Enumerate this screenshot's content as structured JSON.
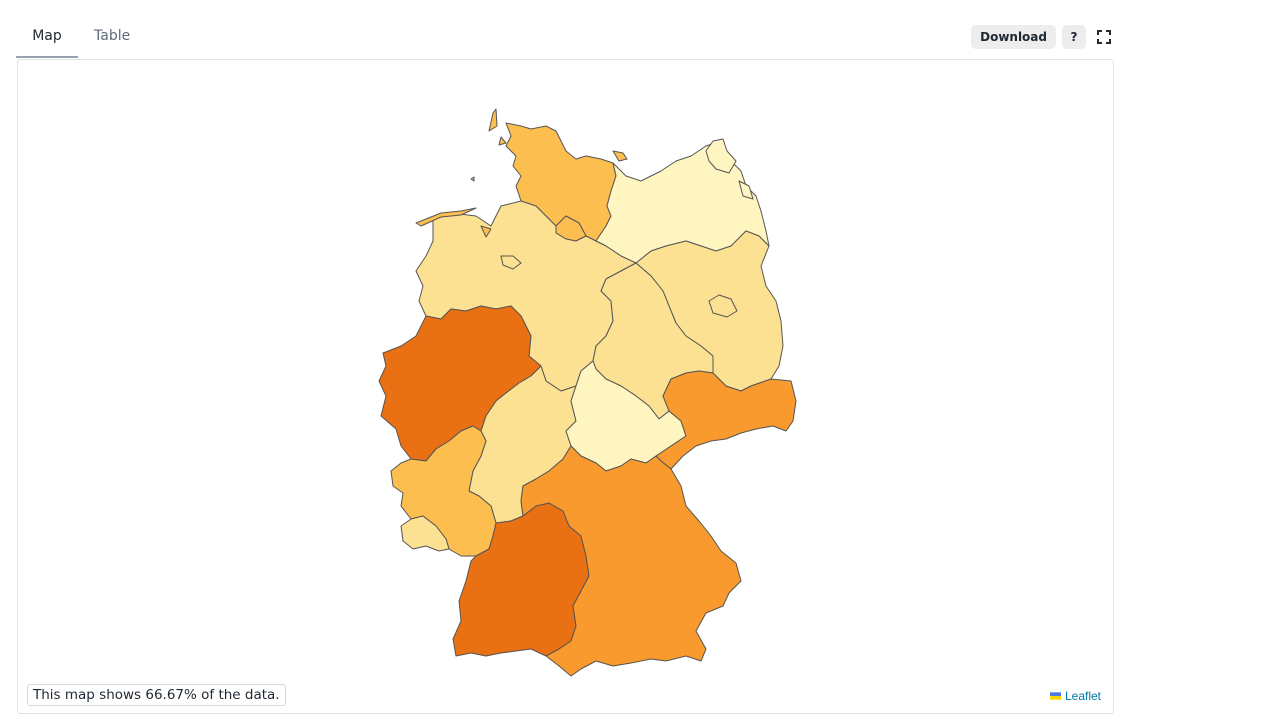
{
  "tabs": [
    {
      "label": "Map",
      "active": true
    },
    {
      "label": "Table",
      "active": false
    }
  ],
  "toolbar": {
    "download_label": "Download",
    "help_label": "?",
    "fullscreen_icon": "fullscreen-icon"
  },
  "map": {
    "coverage_text": "This map shows 66.67% of the data.",
    "attribution": "Leaflet",
    "color_scale": [
      "#fff5c0",
      "#fde192",
      "#fdbe50",
      "#f89a2e",
      "#ea7014"
    ],
    "regions": [
      {
        "name": "Schleswig-Holstein",
        "color": "#fdbe50"
      },
      {
        "name": "Hamburg",
        "color": "#fdbe50"
      },
      {
        "name": "Mecklenburg-Vorpommern",
        "color": "#fff5c0"
      },
      {
        "name": "Niedersachsen",
        "color": "#fde192"
      },
      {
        "name": "Bremen",
        "color": "#fde192"
      },
      {
        "name": "Brandenburg",
        "color": "#fde192"
      },
      {
        "name": "Berlin",
        "color": "#fde192"
      },
      {
        "name": "Sachsen-Anhalt",
        "color": "#fde192"
      },
      {
        "name": "Nordrhein-Westfalen",
        "color": "#ea7014"
      },
      {
        "name": "Hessen",
        "color": "#fde192"
      },
      {
        "name": "Thüringen",
        "color": "#fff5c0"
      },
      {
        "name": "Sachsen",
        "color": "#f89a2e"
      },
      {
        "name": "Rheinland-Pfalz",
        "color": "#fdbe50"
      },
      {
        "name": "Saarland",
        "color": "#fde192"
      },
      {
        "name": "Baden-Württemberg",
        "color": "#ea7014"
      },
      {
        "name": "Bayern",
        "color": "#f89a2e"
      }
    ]
  }
}
